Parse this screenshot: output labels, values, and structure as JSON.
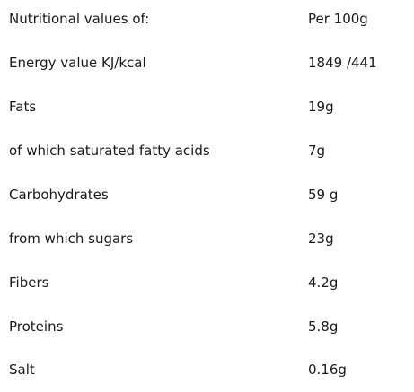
{
  "table": {
    "header": {
      "label": "Nutritional values of:",
      "value": "Per 100g"
    },
    "rows": [
      {
        "label": "Energy value KJ/kcal",
        "value": "1849 /441"
      },
      {
        "label": "Fats",
        "value": "19g"
      },
      {
        "label": "of which saturated fatty acids",
        "value": "7g"
      },
      {
        "label": "Carbohydrates",
        "value": "59 g"
      },
      {
        "label": "from which sugars",
        "value": "23g"
      },
      {
        "label": "Fibers",
        "value": "4.2g"
      },
      {
        "label": "Proteins",
        "value": "5.8g"
      },
      {
        "label": "Salt",
        "value": "0.16g"
      }
    ]
  }
}
